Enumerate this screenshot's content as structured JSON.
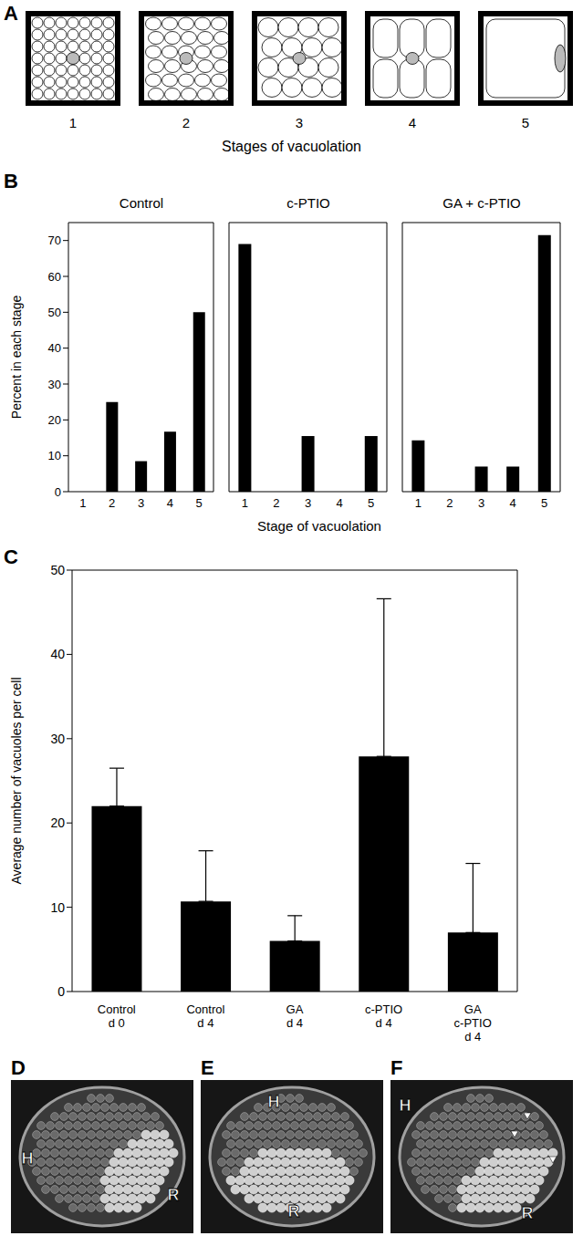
{
  "panel_letters": [
    "A",
    "B",
    "C",
    "D",
    "E",
    "F"
  ],
  "diagram": {
    "stage_labels": [
      "1",
      "2",
      "3",
      "4",
      "5"
    ],
    "caption": "Stages of vacuolation"
  },
  "chart_data": [
    {
      "type": "bar",
      "title": "Control",
      "categories": [
        "1",
        "2",
        "3",
        "4",
        "5"
      ],
      "values": [
        0,
        25,
        8.5,
        16.7,
        50
      ],
      "color": "#000000",
      "ylim": [
        0,
        75
      ],
      "yticks": [
        0,
        10,
        20,
        30,
        40,
        50,
        60,
        70
      ],
      "ylabel": "Percent in each stage"
    },
    {
      "type": "bar",
      "title": "c-PTIO",
      "categories": [
        "1",
        "2",
        "3",
        "4",
        "5"
      ],
      "values": [
        69,
        0,
        15.5,
        0,
        15.5
      ],
      "color": "#000000",
      "ylim": [
        0,
        75
      ],
      "yticks": [
        0,
        10,
        20,
        30,
        40,
        50,
        60,
        70
      ],
      "xlabel": "Stage of vacuolation",
      "tick_labels": "x"
    },
    {
      "type": "bar",
      "title": "GA + c-PTIO",
      "categories": [
        "1",
        "2",
        "3",
        "4",
        "5"
      ],
      "values": [
        14.3,
        0,
        7,
        7,
        71.5
      ],
      "color": "#000000",
      "ylim": [
        0,
        75
      ],
      "yticks": [
        0,
        10,
        20,
        30,
        40,
        50,
        60,
        70
      ],
      "tick_labels": "x"
    },
    {
      "type": "bar",
      "categories": [
        "Control\nd 0",
        "Control\nd 4",
        "GA\nd 4",
        "c-PTIO\nd 4",
        "GA\nc-PTIO\nd 4"
      ],
      "values": [
        22,
        10.7,
        6,
        27.9,
        7
      ],
      "errors": [
        4.5,
        6,
        3,
        18.7,
        8.2
      ],
      "color": "#000000",
      "ylim": [
        0,
        50
      ],
      "yticks": [
        0,
        10,
        20,
        30,
        40,
        50
      ],
      "ylabel": "Average number of  vacuoles per cell"
    }
  ],
  "images": [
    {
      "labels": [
        "H",
        "R"
      ]
    },
    {
      "labels": [
        "H",
        "R"
      ]
    },
    {
      "labels": [
        "H",
        "R"
      ]
    }
  ]
}
